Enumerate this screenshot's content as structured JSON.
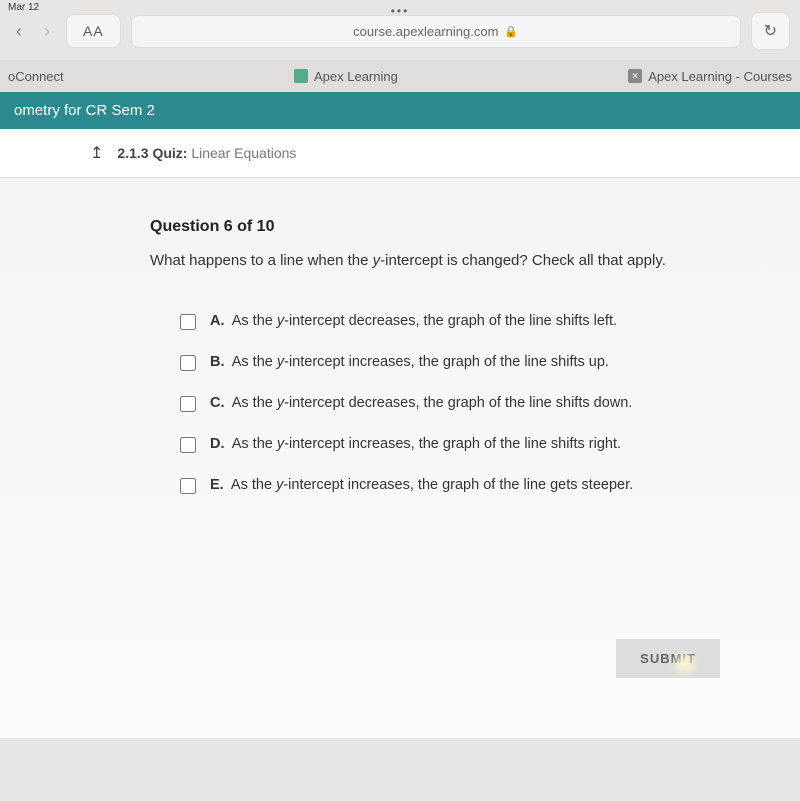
{
  "status": {
    "date": "Mar 12"
  },
  "browser": {
    "aa": "AA",
    "url": "course.apexlearning.com",
    "reload_icon": "↻"
  },
  "tabs": {
    "left": "oConnect",
    "mid": "Apex Learning",
    "right": "Apex Learning - Courses"
  },
  "course_bar": "ometry for CR Sem 2",
  "breadcrumb": {
    "back_icon": "↥",
    "number": "2.1.3",
    "label": "Quiz:",
    "title": "Linear Equations"
  },
  "question": {
    "counter": "Question 6 of 10",
    "text_before": "What happens to a line when the ",
    "text_var": "y",
    "text_after": "-intercept is changed? Check all that apply."
  },
  "options": [
    {
      "letter": "A.",
      "pre": "As the ",
      "var": "y",
      "post": "-intercept decreases, the graph of the line shifts left."
    },
    {
      "letter": "B.",
      "pre": "As the ",
      "var": "y",
      "post": "-intercept increases, the graph of the line shifts up."
    },
    {
      "letter": "C.",
      "pre": "As the ",
      "var": "y",
      "post": "-intercept decreases, the graph of the line shifts down."
    },
    {
      "letter": "D.",
      "pre": "As the ",
      "var": "y",
      "post": "-intercept increases, the graph of the line shifts right."
    },
    {
      "letter": "E.",
      "pre": "As the ",
      "var": "y",
      "post": "-intercept increases, the graph of the line gets steeper."
    }
  ],
  "submit": "SUBMIT",
  "colors": {
    "teal": "#2a8a8f"
  }
}
